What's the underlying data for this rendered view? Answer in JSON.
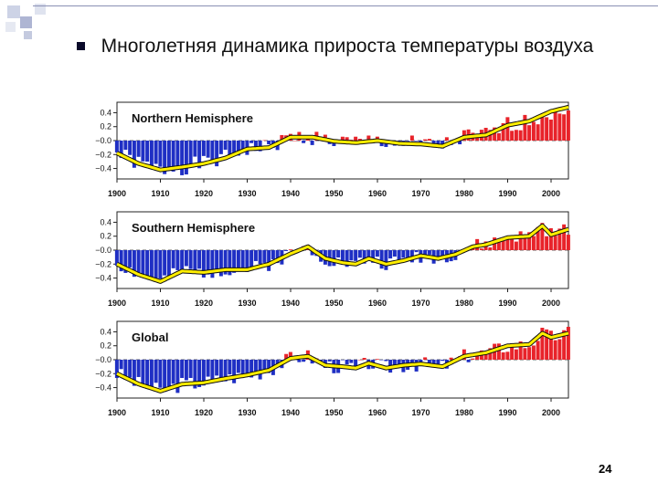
{
  "slide": {
    "title": "Многолетняя динамика прироста температуры воздуха",
    "page_number": "24",
    "bullet_icon": "square-bullet-icon",
    "colors": {
      "positive": "#e8232a",
      "negative": "#1f2fc4",
      "smooth": "#ffee00",
      "smooth_outline": "#111111"
    }
  },
  "chart_data": [
    {
      "type": "bar",
      "title": "Northern Hemisphere",
      "x_start": 1900,
      "x_end": 2004,
      "ylim": [
        -0.55,
        0.55
      ],
      "y_ticks": [
        "0.4",
        "0.2",
        "−0.0",
        "−0.2",
        "−0.4"
      ],
      "y_tick_values": [
        0.4,
        0.2,
        0.0,
        -0.2,
        -0.4
      ],
      "x_ticks": [
        "1900",
        "1910",
        "1920",
        "1930",
        "1940",
        "1950",
        "1960",
        "1970",
        "1980",
        "1990",
        "2000"
      ],
      "smooth_anchors": [
        [
          1900,
          -0.18
        ],
        [
          1905,
          -0.33
        ],
        [
          1910,
          -0.42
        ],
        [
          1915,
          -0.38
        ],
        [
          1920,
          -0.33
        ],
        [
          1925,
          -0.25
        ],
        [
          1930,
          -0.12
        ],
        [
          1935,
          -0.1
        ],
        [
          1940,
          0.05
        ],
        [
          1945,
          0.05
        ],
        [
          1950,
          -0.01
        ],
        [
          1955,
          -0.03
        ],
        [
          1960,
          0.0
        ],
        [
          1965,
          -0.04
        ],
        [
          1970,
          -0.05
        ],
        [
          1975,
          -0.08
        ],
        [
          1980,
          0.05
        ],
        [
          1985,
          0.08
        ],
        [
          1990,
          0.22
        ],
        [
          1995,
          0.28
        ],
        [
          2000,
          0.42
        ],
        [
          2004,
          0.48
        ]
      ],
      "noise_amplitude": 0.12,
      "seed": 1
    },
    {
      "type": "bar",
      "title": "Southern Hemisphere",
      "x_start": 1900,
      "x_end": 2004,
      "ylim": [
        -0.55,
        0.55
      ],
      "y_ticks": [
        "0.4",
        "0.2",
        "−0.0",
        "−0.2",
        "−0.4"
      ],
      "y_tick_values": [
        0.4,
        0.2,
        0.0,
        -0.2,
        -0.4
      ],
      "x_ticks": [
        "1900",
        "1910",
        "1920",
        "1930",
        "1940",
        "1950",
        "1960",
        "1970",
        "1980",
        "1990",
        "2000"
      ],
      "smooth_anchors": [
        [
          1900,
          -0.2
        ],
        [
          1905,
          -0.35
        ],
        [
          1910,
          -0.45
        ],
        [
          1915,
          -0.3
        ],
        [
          1920,
          -0.32
        ],
        [
          1925,
          -0.28
        ],
        [
          1930,
          -0.28
        ],
        [
          1935,
          -0.2
        ],
        [
          1940,
          -0.05
        ],
        [
          1944,
          0.05
        ],
        [
          1948,
          -0.12
        ],
        [
          1952,
          -0.18
        ],
        [
          1955,
          -0.2
        ],
        [
          1958,
          -0.12
        ],
        [
          1962,
          -0.2
        ],
        [
          1966,
          -0.15
        ],
        [
          1970,
          -0.08
        ],
        [
          1974,
          -0.12
        ],
        [
          1978,
          -0.06
        ],
        [
          1982,
          0.05
        ],
        [
          1985,
          0.08
        ],
        [
          1990,
          0.18
        ],
        [
          1995,
          0.2
        ],
        [
          1998,
          0.35
        ],
        [
          2000,
          0.22
        ],
        [
          2004,
          0.3
        ]
      ],
      "noise_amplitude": 0.1,
      "seed": 2
    },
    {
      "type": "bar",
      "title": "Global",
      "x_start": 1900,
      "x_end": 2004,
      "ylim": [
        -0.55,
        0.55
      ],
      "y_ticks": [
        "0.4",
        "0.2",
        "−0.0",
        "−0.2",
        "−0.4"
      ],
      "y_tick_values": [
        0.4,
        0.2,
        0.0,
        -0.2,
        -0.4
      ],
      "x_ticks": [
        "1900",
        "1910",
        "1920",
        "1930",
        "1940",
        "1950",
        "1960",
        "1970",
        "1980",
        "1990",
        "2000"
      ],
      "smooth_anchors": [
        [
          1900,
          -0.2
        ],
        [
          1905,
          -0.35
        ],
        [
          1910,
          -0.45
        ],
        [
          1915,
          -0.35
        ],
        [
          1920,
          -0.33
        ],
        [
          1925,
          -0.27
        ],
        [
          1930,
          -0.22
        ],
        [
          1935,
          -0.15
        ],
        [
          1940,
          0.02
        ],
        [
          1944,
          0.05
        ],
        [
          1948,
          -0.08
        ],
        [
          1952,
          -0.1
        ],
        [
          1955,
          -0.12
        ],
        [
          1958,
          -0.05
        ],
        [
          1962,
          -0.12
        ],
        [
          1966,
          -0.08
        ],
        [
          1970,
          -0.06
        ],
        [
          1975,
          -0.1
        ],
        [
          1980,
          0.05
        ],
        [
          1985,
          0.1
        ],
        [
          1990,
          0.2
        ],
        [
          1995,
          0.22
        ],
        [
          1998,
          0.38
        ],
        [
          2000,
          0.32
        ],
        [
          2004,
          0.38
        ]
      ],
      "noise_amplitude": 0.11,
      "seed": 3
    }
  ]
}
